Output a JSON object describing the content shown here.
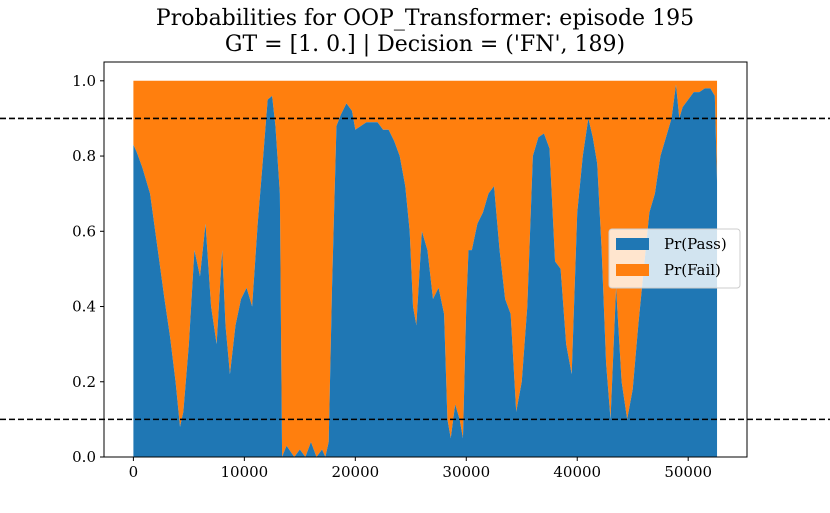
{
  "chart_data": {
    "type": "area",
    "stacked": true,
    "title": "Probabilities for OOP_Transformer: episode 195",
    "subtitle": "GT = [1. 0.] | Decision = ('FN', 189)",
    "xlim": [
      -2650,
      55300
    ],
    "ylim": [
      0.0,
      1.05
    ],
    "xticks": [
      0,
      10000,
      20000,
      30000,
      40000,
      50000
    ],
    "yticks": [
      "0.0",
      "0.2",
      "0.4",
      "0.6",
      "0.8",
      "1.0"
    ],
    "thresholds": [
      0.9,
      0.1
    ],
    "legend_position": "center-right",
    "x": [
      0,
      300,
      800,
      1500,
      2200,
      2800,
      3300,
      3800,
      4200,
      4500,
      5000,
      5500,
      6000,
      6500,
      7000,
      7500,
      8000,
      8300,
      8700,
      9200,
      9700,
      10200,
      10700,
      11200,
      11700,
      12100,
      12500,
      12800,
      13200,
      13400,
      13800,
      14500,
      15000,
      15500,
      16000,
      16500,
      17000,
      17300,
      17600,
      17900,
      18300,
      18700,
      19200,
      19700,
      20000,
      20500,
      21000,
      21500,
      22000,
      22500,
      23000,
      23500,
      24000,
      24500,
      24900,
      25200,
      25500,
      26000,
      26500,
      27000,
      27500,
      28000,
      28300,
      28600,
      29000,
      29400,
      29700,
      30000,
      30200,
      30500,
      31000,
      31500,
      32000,
      32500,
      33000,
      33500,
      34000,
      34500,
      35000,
      35500,
      36000,
      36500,
      37000,
      37500,
      38000,
      38500,
      39000,
      39500,
      40000,
      40500,
      41000,
      41400,
      41800,
      42200,
      42600,
      43000,
      43500,
      44000,
      44500,
      45000,
      45500,
      46000,
      46500,
      47000,
      47500,
      48000,
      48500,
      48900,
      49200,
      49500,
      50000,
      50500,
      51000,
      51500,
      52000,
      52400,
      52600
    ],
    "series": [
      {
        "name": "Pr(Pass)",
        "color": "#1f77b4",
        "values": [
          0.83,
          0.81,
          0.77,
          0.7,
          0.55,
          0.42,
          0.32,
          0.2,
          0.08,
          0.12,
          0.3,
          0.55,
          0.48,
          0.62,
          0.4,
          0.3,
          0.55,
          0.35,
          0.22,
          0.35,
          0.42,
          0.45,
          0.4,
          0.62,
          0.8,
          0.95,
          0.96,
          0.88,
          0.7,
          0.0,
          0.03,
          0.0,
          0.02,
          0.0,
          0.04,
          0.0,
          0.02,
          0.0,
          0.04,
          0.45,
          0.88,
          0.91,
          0.94,
          0.92,
          0.87,
          0.88,
          0.89,
          0.89,
          0.89,
          0.87,
          0.87,
          0.84,
          0.8,
          0.72,
          0.6,
          0.4,
          0.35,
          0.6,
          0.55,
          0.42,
          0.45,
          0.38,
          0.1,
          0.05,
          0.14,
          0.1,
          0.05,
          0.4,
          0.55,
          0.55,
          0.62,
          0.65,
          0.7,
          0.72,
          0.55,
          0.42,
          0.38,
          0.12,
          0.2,
          0.4,
          0.8,
          0.85,
          0.86,
          0.82,
          0.52,
          0.5,
          0.3,
          0.22,
          0.65,
          0.8,
          0.9,
          0.85,
          0.78,
          0.55,
          0.25,
          0.1,
          0.45,
          0.2,
          0.1,
          0.18,
          0.35,
          0.5,
          0.65,
          0.7,
          0.8,
          0.85,
          0.9,
          0.99,
          0.9,
          0.93,
          0.95,
          0.97,
          0.97,
          0.98,
          0.98,
          0.96,
          0.73
        ]
      },
      {
        "name": "Pr(Fail)",
        "color": "#ff7f0e"
      }
    ]
  }
}
